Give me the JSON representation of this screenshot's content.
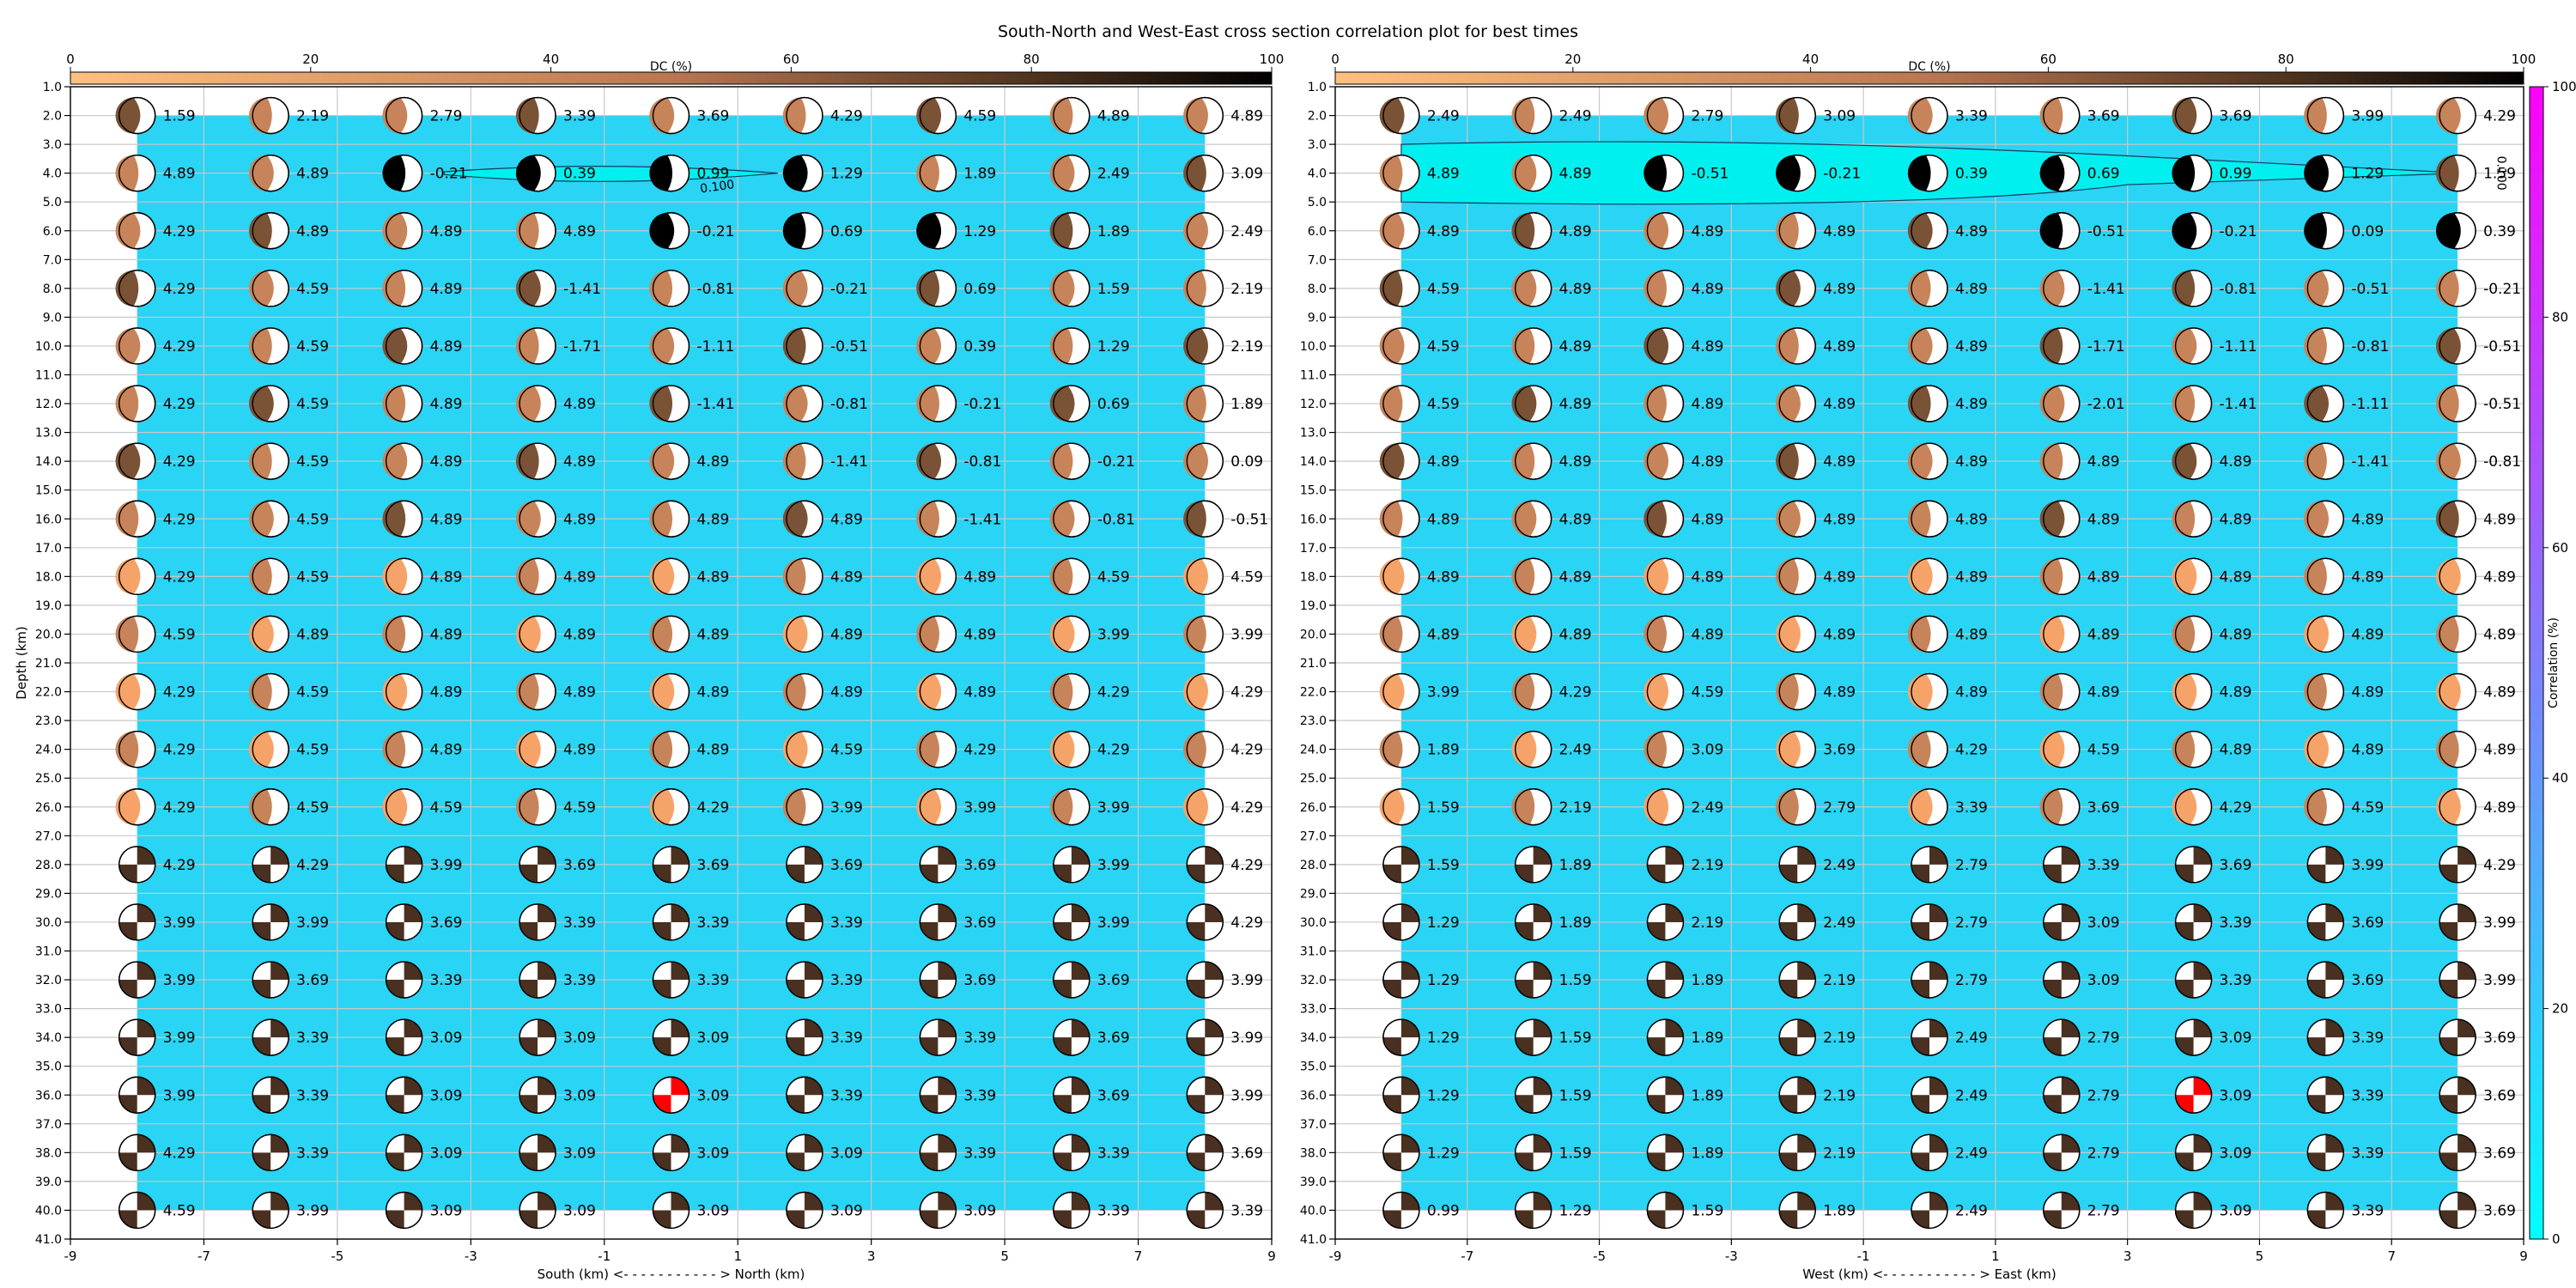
{
  "title": "South-North and West-East cross section correlation plot for best times",
  "chart_data": [
    {
      "type": "scatter",
      "panel": "left",
      "xlabel": "South (km) <- - - - - - - - - - - > North (km)",
      "ylabel": "Depth (km)",
      "xlim": [
        -9,
        9
      ],
      "ylim": [
        41,
        1
      ],
      "xticks": [
        -9,
        -7,
        -5,
        -3,
        -1,
        1,
        3,
        5,
        7,
        9
      ],
      "yticks": [
        1,
        2,
        3,
        4,
        5,
        6,
        7,
        8,
        9,
        10,
        11,
        12,
        13,
        14,
        15,
        16,
        17,
        18,
        19,
        20,
        21,
        22,
        23,
        24,
        25,
        26,
        27,
        28,
        29,
        30,
        31,
        32,
        33,
        34,
        35,
        36,
        37,
        38,
        39,
        40,
        41
      ],
      "grid": true,
      "x_positions": [
        -8,
        -6,
        -4,
        -2,
        0,
        2,
        4,
        6,
        8
      ],
      "depths": [
        2,
        4,
        6,
        8,
        10,
        12,
        14,
        16,
        18,
        20,
        22,
        24,
        26,
        28,
        30,
        32,
        34,
        36,
        38,
        40
      ],
      "correlation_background": "100% (cyan) over x -8..8, depth 2..40",
      "dc_colorbar": {
        "label": "DC (%)",
        "range": [
          0,
          100
        ],
        "ticks": [
          0,
          20,
          40,
          60,
          80,
          100
        ],
        "placement": "top"
      },
      "contour": {
        "label": "0.100",
        "depth_range": [
          3.5,
          4.5
        ]
      },
      "best_solution": {
        "x": 0,
        "depth": 36,
        "value": "3.09",
        "color": "#ff0000"
      },
      "labels": [
        [
          "1.59",
          "2.19",
          "2.79",
          "3.39",
          "3.69",
          "4.29",
          "4.59",
          "4.89",
          "4.89"
        ],
        [
          "4.89",
          "4.89",
          "-0.21",
          "0.39",
          "0.99",
          "1.29",
          "1.89",
          "2.49",
          "3.09"
        ],
        [
          "4.29",
          "4.89",
          "4.89",
          "4.89",
          "-0.21",
          "0.69",
          "1.29",
          "1.89",
          "2.49"
        ],
        [
          "4.29",
          "4.59",
          "4.89",
          "-1.41",
          "-0.81",
          "-0.21",
          "0.69",
          "1.59",
          "2.19"
        ],
        [
          "4.29",
          "4.59",
          "4.89",
          "-1.71",
          "-1.11",
          "-0.51",
          "0.39",
          "1.29",
          "2.19"
        ],
        [
          "4.29",
          "4.59",
          "4.89",
          "4.89",
          "-1.41",
          "-0.81",
          "-0.21",
          "0.69",
          "1.89"
        ],
        [
          "4.29",
          "4.59",
          "4.89",
          "4.89",
          "4.89",
          "-1.41",
          "-0.81",
          "-0.21",
          "0.09"
        ],
        [
          "4.29",
          "4.59",
          "4.89",
          "4.89",
          "4.89",
          "4.89",
          "-1.41",
          "-0.81",
          "-0.51"
        ],
        [
          "4.29",
          "4.59",
          "4.89",
          "4.89",
          "4.89",
          "4.89",
          "4.89",
          "4.59",
          "4.59"
        ],
        [
          "4.59",
          "4.89",
          "4.89",
          "4.89",
          "4.89",
          "4.89",
          "4.89",
          "3.99",
          "3.99"
        ],
        [
          "4.29",
          "4.59",
          "4.89",
          "4.89",
          "4.89",
          "4.89",
          "4.89",
          "4.29",
          "4.29"
        ],
        [
          "4.29",
          "4.59",
          "4.89",
          "4.89",
          "4.89",
          "4.59",
          "4.29",
          "4.29",
          "4.29"
        ],
        [
          "4.29",
          "4.59",
          "4.59",
          "4.59",
          "4.29",
          "3.99",
          "3.99",
          "3.99",
          "4.29"
        ],
        [
          "4.29",
          "4.29",
          "3.99",
          "3.69",
          "3.69",
          "3.69",
          "3.69",
          "3.99",
          "4.29"
        ],
        [
          "3.99",
          "3.99",
          "3.69",
          "3.39",
          "3.39",
          "3.39",
          "3.69",
          "3.99",
          "4.29"
        ],
        [
          "3.99",
          "3.69",
          "3.39",
          "3.39",
          "3.39",
          "3.39",
          "3.69",
          "3.69",
          "3.99"
        ],
        [
          "3.99",
          "3.39",
          "3.09",
          "3.09",
          "3.09",
          "3.39",
          "3.39",
          "3.69",
          "3.99"
        ],
        [
          "3.99",
          "3.39",
          "3.09",
          "3.09",
          "3.09",
          "3.39",
          "3.39",
          "3.69",
          "3.99"
        ],
        [
          "4.29",
          "3.39",
          "3.09",
          "3.09",
          "3.09",
          "3.09",
          "3.39",
          "3.39",
          "3.69"
        ],
        [
          "4.59",
          "3.99",
          "3.09",
          "3.09",
          "3.09",
          "3.09",
          "3.09",
          "3.39",
          "3.39"
        ]
      ]
    },
    {
      "type": "scatter",
      "panel": "right",
      "xlabel": "West (km) <- - - - - - - - - - - > East (km)",
      "xlim": [
        -9,
        9
      ],
      "ylim": [
        41,
        1
      ],
      "xticks": [
        -9,
        -7,
        -5,
        -3,
        -1,
        1,
        3,
        5,
        7,
        9
      ],
      "yticks": [
        1,
        2,
        3,
        4,
        5,
        6,
        7,
        8,
        9,
        10,
        11,
        12,
        13,
        14,
        15,
        16,
        17,
        18,
        19,
        20,
        21,
        22,
        23,
        24,
        25,
        26,
        27,
        28,
        29,
        30,
        31,
        32,
        33,
        34,
        35,
        36,
        37,
        38,
        39,
        40,
        41
      ],
      "grid": true,
      "x_positions": [
        -8,
        -6,
        -4,
        -2,
        0,
        2,
        4,
        6,
        8
      ],
      "depths": [
        2,
        4,
        6,
        8,
        10,
        12,
        14,
        16,
        18,
        20,
        22,
        24,
        26,
        28,
        30,
        32,
        34,
        36,
        38,
        40
      ],
      "correlation_background": "100% (cyan) over x -8..8, depth 2..40",
      "dc_colorbar": {
        "label": "DC (%)",
        "range": [
          0,
          100
        ],
        "ticks": [
          0,
          20,
          40,
          60,
          80,
          100
        ],
        "placement": "top"
      },
      "correlation_colorbar": {
        "label": "Correlation (%)",
        "range": [
          0,
          100
        ],
        "ticks": [
          0,
          20,
          40,
          60,
          80,
          100
        ],
        "placement": "right"
      },
      "contour": {
        "label": "0.100",
        "depth_range": [
          3.0,
          5.0
        ]
      },
      "best_solution": {
        "x": 4,
        "depth": 36,
        "value": "3.09",
        "color": "#ff0000"
      },
      "labels": [
        [
          "2.49",
          "2.49",
          "2.79",
          "3.09",
          "3.39",
          "3.69",
          "3.69",
          "3.99",
          "4.29"
        ],
        [
          "4.89",
          "4.89",
          "-0.51",
          "-0.21",
          "0.39",
          "0.69",
          "0.99",
          "1.29",
          "1.59"
        ],
        [
          "4.89",
          "4.89",
          "4.89",
          "4.89",
          "4.89",
          "-0.51",
          "-0.21",
          "0.09",
          "0.39"
        ],
        [
          "4.59",
          "4.89",
          "4.89",
          "4.89",
          "4.89",
          "-1.41",
          "-0.81",
          "-0.51",
          "-0.21"
        ],
        [
          "4.59",
          "4.89",
          "4.89",
          "4.89",
          "4.89",
          "-1.71",
          "-1.11",
          "-0.81",
          "-0.51"
        ],
        [
          "4.59",
          "4.89",
          "4.89",
          "4.89",
          "4.89",
          "-2.01",
          "-1.41",
          "-1.11",
          "-0.51"
        ],
        [
          "4.89",
          "4.89",
          "4.89",
          "4.89",
          "4.89",
          "4.89",
          "4.89",
          "-1.41",
          "-0.81"
        ],
        [
          "4.89",
          "4.89",
          "4.89",
          "4.89",
          "4.89",
          "4.89",
          "4.89",
          "4.89",
          "4.89"
        ],
        [
          "4.89",
          "4.89",
          "4.89",
          "4.89",
          "4.89",
          "4.89",
          "4.89",
          "4.89",
          "4.89"
        ],
        [
          "4.89",
          "4.89",
          "4.89",
          "4.89",
          "4.89",
          "4.89",
          "4.89",
          "4.89",
          "4.89"
        ],
        [
          "3.99",
          "4.29",
          "4.59",
          "4.89",
          "4.89",
          "4.89",
          "4.89",
          "4.89",
          "4.89"
        ],
        [
          "1.89",
          "2.49",
          "3.09",
          "3.69",
          "4.29",
          "4.59",
          "4.89",
          "4.89",
          "4.89"
        ],
        [
          "1.59",
          "2.19",
          "2.49",
          "2.79",
          "3.39",
          "3.69",
          "4.29",
          "4.59",
          "4.89"
        ],
        [
          "1.59",
          "1.89",
          "2.19",
          "2.49",
          "2.79",
          "3.39",
          "3.69",
          "3.99",
          "4.29"
        ],
        [
          "1.29",
          "1.89",
          "2.19",
          "2.49",
          "2.79",
          "3.09",
          "3.39",
          "3.69",
          "3.99"
        ],
        [
          "1.29",
          "1.59",
          "1.89",
          "2.19",
          "2.79",
          "3.09",
          "3.39",
          "3.69",
          "3.99"
        ],
        [
          "1.29",
          "1.59",
          "1.89",
          "2.19",
          "2.49",
          "2.79",
          "3.09",
          "3.39",
          "3.69"
        ],
        [
          "1.29",
          "1.59",
          "1.89",
          "2.19",
          "2.49",
          "2.79",
          "3.09",
          "3.39",
          "3.69"
        ],
        [
          "1.29",
          "1.59",
          "1.89",
          "2.19",
          "2.49",
          "2.79",
          "3.09",
          "3.39",
          "3.69"
        ],
        [
          "0.99",
          "1.29",
          "1.59",
          "1.89",
          "2.49",
          "2.79",
          "3.09",
          "3.39",
          "3.69"
        ]
      ]
    }
  ],
  "colors": {
    "correlation_fill": "#29d4f4",
    "contour_fill": "#00f0f0",
    "grid": "#c8c8c8",
    "best": "#ff0000",
    "dc_0": "#ffbf80",
    "dc_50": "#c6815a",
    "dc_100": "#000000",
    "corr_0": "#00ffff",
    "corr_100": "#ff00ff"
  }
}
